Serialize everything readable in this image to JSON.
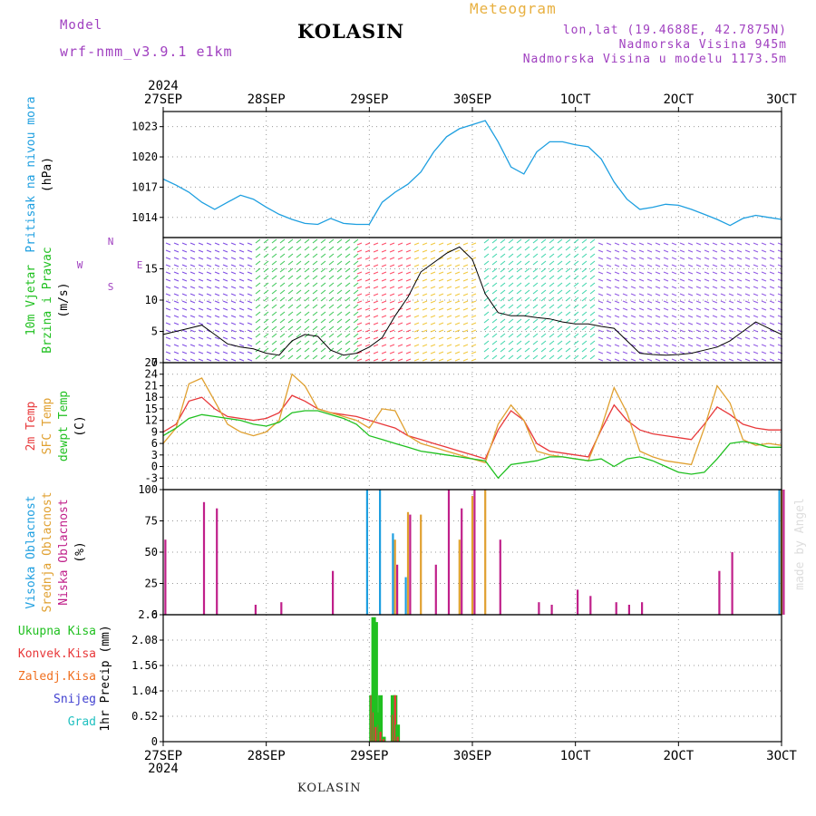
{
  "header": {
    "model_label": "Model",
    "model_name": "wrf-nmm_v3.9.1 e1km",
    "station": "KOLASIN",
    "product": "Meteogram",
    "lonlat": "lon,lat (19.4688E, 42.7875N)",
    "elevation": "Nadmorska Visina 945m",
    "model_elevation": "Nadmorska Visina u modelu 1173.5m",
    "footer_station": "KOLASIN",
    "watermark": "made by Angel"
  },
  "colors": {
    "pressure": "#1e9fe0",
    "temp2m": "#e8383a",
    "sfc": "#e0a030",
    "dewpt": "#20c020",
    "high_cloud": "#1e9fe0",
    "mid_cloud": "#e0a030",
    "low_cloud": "#c0208a",
    "total_precip": "#20c020",
    "conv_precip": "#e8383a",
    "freezing": "#f07020",
    "snow": "#4040d0",
    "hail": "#20c0c0",
    "header_purple": "#a040c0",
    "header_orange": "#e8b040"
  },
  "chart_data": {
    "type": "line",
    "time_axis": {
      "year": "2024",
      "ticks": [
        "27SEP",
        "28SEP",
        "29SEP",
        "30SEP",
        "1OCT",
        "2OCT",
        "3OCT"
      ],
      "range_hours": [
        0,
        144
      ],
      "step_hours": 3
    },
    "panels": [
      {
        "id": "pressure",
        "type": "line",
        "ylabel_lines": [
          "Pritisak na nivou mora",
          "(hPa)"
        ],
        "ylim": [
          1012.0,
          1024.5
        ],
        "yticks": [
          1014,
          1017,
          1020,
          1023
        ],
        "series": [
          {
            "name": "Pritisak na nivou mora",
            "values": [
              1017.8,
              1017.2,
              1016.5,
              1015.5,
              1014.8,
              1015.5,
              1016.2,
              1015.8,
              1015.0,
              1014.3,
              1013.8,
              1013.4,
              1013.3,
              1013.9,
              1013.4,
              1013.3,
              1013.3,
              1015.5,
              1016.5,
              1017.3,
              1018.5,
              1020.5,
              1022.0,
              1022.8,
              1023.2,
              1023.6,
              1021.5,
              1019.0,
              1018.3,
              1020.5,
              1021.5,
              1021.5,
              1021.2,
              1021.0,
              1019.8,
              1017.5,
              1015.8,
              1014.8,
              1015.0,
              1015.3,
              1015.2,
              1014.8,
              1014.3,
              1013.8,
              1013.2,
              1013.9,
              1014.2,
              1014.0,
              1013.8
            ]
          }
        ]
      },
      {
        "id": "wind",
        "type": "line",
        "ylabel_lines": [
          "10m Vjetar",
          "Brzina i Pravac",
          "(m/s)"
        ],
        "compass_labels": [
          "N",
          "E",
          "S",
          "W"
        ],
        "ylim": [
          0,
          20
        ],
        "yticks": [
          0,
          5,
          10,
          15
        ],
        "series": [
          {
            "name": "Brzina",
            "values": [
              4.5,
              5.0,
              5.5,
              6.0,
              4.5,
              3.0,
              2.5,
              2.2,
              1.5,
              1.2,
              3.5,
              4.5,
              4.2,
              2.0,
              1.2,
              1.5,
              2.5,
              4.0,
              7.5,
              10.5,
              14.5,
              16.0,
              17.5,
              18.5,
              16.5,
              11.0,
              8.0,
              7.5,
              7.5,
              7.2,
              7.0,
              6.5,
              6.2,
              6.2,
              5.8,
              5.5,
              3.5,
              1.5,
              1.3,
              1.2,
              1.3,
              1.5,
              2.0,
              2.5,
              3.5,
              5.0,
              6.5,
              5.5,
              4.5
            ]
          }
        ]
      },
      {
        "id": "temperature",
        "type": "line",
        "ylabel_lines": [
          "2m Temp",
          "SFC Temp",
          "dewpt Temp",
          "(C)"
        ],
        "ylim": [
          -6,
          27
        ],
        "yticks": [
          -3,
          0,
          3,
          6,
          9,
          12,
          15,
          18,
          21,
          24,
          27
        ],
        "series": [
          {
            "name": "2m Temp",
            "values": [
              9.0,
              11.0,
              17.0,
              18.0,
              15.0,
              13.0,
              12.5,
              12.0,
              12.5,
              14.0,
              18.5,
              17.0,
              15.0,
              14.0,
              13.5,
              13.0,
              12.0,
              11.0,
              10.0,
              8.0,
              7.0,
              6.0,
              5.0,
              4.0,
              3.0,
              2.0,
              9.5,
              14.5,
              12.0,
              6.0,
              4.0,
              3.5,
              3.0,
              2.5,
              9.5,
              16.0,
              12.0,
              9.5,
              8.5,
              8.0,
              7.5,
              7.0,
              11.0,
              15.5,
              13.5,
              11.0,
              10.0,
              9.5,
              9.5
            ]
          },
          {
            "name": "SFC Temp",
            "values": [
              6.0,
              10.0,
              21.5,
              23.0,
              17.0,
              11.0,
              9.0,
              8.0,
              9.0,
              12.0,
              24.0,
              21.0,
              15.0,
              14.0,
              13.0,
              12.0,
              10.0,
              15.0,
              14.5,
              8.0,
              6.0,
              5.0,
              4.0,
              3.0,
              2.0,
              1.0,
              11.0,
              16.0,
              12.0,
              4.0,
              3.0,
              2.5,
              2.0,
              1.5,
              10.0,
              20.5,
              14.0,
              4.0,
              2.5,
              1.5,
              1.0,
              0.5,
              10.0,
              21.0,
              16.5,
              7.0,
              5.5,
              6.0,
              5.5
            ]
          },
          {
            "name": "dewpt Temp",
            "values": [
              8.0,
              10.0,
              12.5,
              13.5,
              13.0,
              12.5,
              12.0,
              11.0,
              10.5,
              11.5,
              14.0,
              14.5,
              14.5,
              13.5,
              12.5,
              11.0,
              8.0,
              7.0,
              6.0,
              5.0,
              4.0,
              3.5,
              3.0,
              2.5,
              2.0,
              1.5,
              -3.0,
              0.5,
              1.0,
              1.5,
              2.5,
              2.5,
              2.0,
              1.5,
              2.0,
              0.0,
              2.0,
              2.5,
              1.5,
              0.0,
              -1.5,
              -2.0,
              -1.5,
              2.0,
              6.0,
              6.5,
              6.0,
              5.0,
              5.0
            ]
          }
        ]
      },
      {
        "id": "cloud",
        "type": "bar",
        "ylabel_lines": [
          "Visoka Oblacnost",
          "Srednja Oblacnost",
          "Niska Oblacnost",
          "(%)"
        ],
        "ylim": [
          0,
          100
        ],
        "yticks": [
          0,
          25,
          50,
          75,
          100
        ],
        "series": [
          {
            "name": "Visoka Oblacnost",
            "values": [
              0,
              0,
              0,
              0,
              0,
              0,
              0,
              0,
              0,
              0,
              0,
              0,
              0,
              0,
              0,
              0,
              100,
              100,
              65,
              30,
              0,
              0,
              0,
              0,
              0,
              0,
              0,
              0,
              0,
              0,
              0,
              0,
              0,
              0,
              0,
              0,
              0,
              0,
              0,
              0,
              0,
              0,
              0,
              0,
              0,
              0,
              0,
              0,
              100
            ]
          },
          {
            "name": "Srednja Oblacnost",
            "values": [
              0,
              0,
              0,
              0,
              0,
              0,
              0,
              0,
              0,
              0,
              0,
              0,
              0,
              0,
              0,
              0,
              0,
              0,
              60,
              82,
              80,
              0,
              0,
              60,
              95,
              100,
              0,
              0,
              0,
              0,
              0,
              0,
              0,
              0,
              0,
              0,
              0,
              0,
              0,
              0,
              0,
              0,
              0,
              0,
              0,
              0,
              0,
              0,
              100
            ]
          },
          {
            "name": "Niska Oblacnost",
            "values": [
              60,
              0,
              0,
              90,
              85,
              0,
              0,
              8,
              0,
              10,
              0,
              0,
              0,
              35,
              0,
              0,
              0,
              0,
              40,
              80,
              0,
              40,
              100,
              85,
              100,
              0,
              60,
              0,
              0,
              10,
              8,
              0,
              20,
              15,
              0,
              10,
              8,
              10,
              0,
              0,
              0,
              0,
              0,
              35,
              50,
              0,
              0,
              0,
              100
            ]
          }
        ]
      },
      {
        "id": "precip",
        "type": "bar",
        "ylabel_lines": [
          "1hr Precip (mm)"
        ],
        "legend_lines": [
          "Ukupna Kisa",
          "Konvek.Kisa",
          "Zaledj.Kisa",
          "Snijeg",
          "Grad"
        ],
        "ylim": [
          0,
          2.6
        ],
        "yticks": [
          0,
          0.52,
          1.04,
          1.56,
          2.08,
          2.6
        ],
        "series": [
          {
            "name": "Ukupna Kisa",
            "values": [
              0,
              0,
              0,
              0,
              0,
              0,
              0,
              0,
              0,
              0,
              0,
              0,
              0,
              0,
              0,
              0,
              0,
              0,
              0,
              0,
              0,
              0,
              0,
              0,
              0,
              0,
              0,
              0,
              0,
              0,
              0,
              0,
              0,
              0,
              0,
              0,
              0,
              0,
              0,
              0,
              0,
              0,
              0,
              0,
              0,
              0,
              0,
              0,
              0
            ]
          },
          {
            "name": "Konvek.Kisa",
            "values": [
              0,
              0,
              0,
              0,
              0,
              0,
              0,
              0,
              0,
              0,
              0,
              0,
              0,
              0,
              0,
              0,
              0,
              0,
              0,
              0,
              0,
              0,
              0,
              0,
              0,
              0,
              0,
              0,
              0,
              0,
              0,
              0,
              0,
              0,
              0,
              0,
              0,
              0,
              0,
              0,
              0,
              0,
              0,
              0,
              0,
              0,
              0,
              0,
              0
            ]
          }
        ],
        "bars": [
          {
            "hour": 48.5,
            "total": 0.95,
            "conv": 0.95
          },
          {
            "hour": 49.0,
            "total": 2.55,
            "conv": 0.6
          },
          {
            "hour": 49.5,
            "total": 2.45,
            "conv": 0.3
          },
          {
            "hour": 50.2,
            "total": 0.6,
            "conv": 0.35
          },
          {
            "hour": 50.6,
            "total": 0.95,
            "conv": 0.2
          },
          {
            "hour": 51.3,
            "total": 0.1,
            "conv": 0.05
          },
          {
            "hour": 53.5,
            "total": 0.95,
            "conv": 0.55
          },
          {
            "hour": 54.0,
            "total": 0.95,
            "conv": 0.95
          },
          {
            "hour": 54.6,
            "total": 0.35,
            "conv": 0.1
          }
        ]
      }
    ]
  }
}
